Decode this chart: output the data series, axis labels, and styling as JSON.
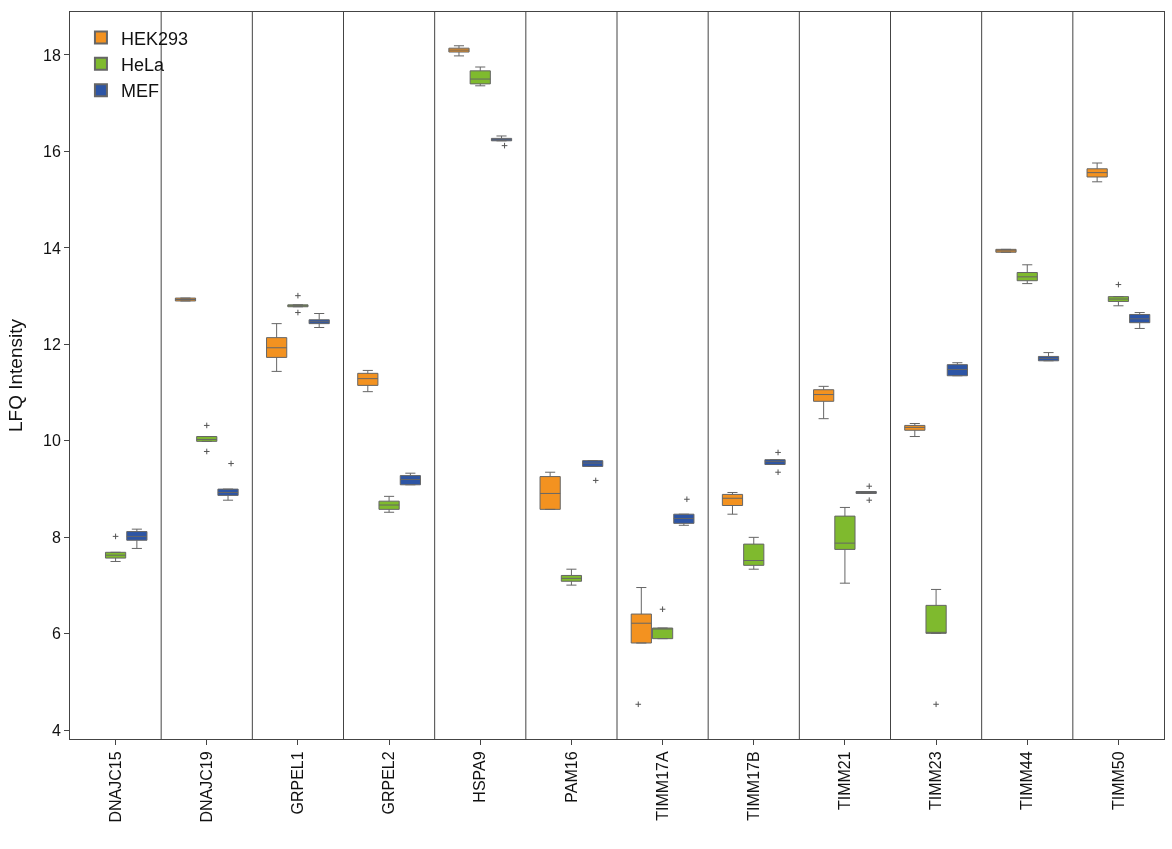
{
  "chart_data": {
    "type": "box",
    "ylabel": "LFQ Intensity",
    "categories": [
      "DNAJC15",
      "DNAJC19",
      "GRPEL1",
      "GRPEL2",
      "HSPA9",
      "PAM16",
      "TIMM17A",
      "TIMM17B",
      "TIMM21",
      "TIMM23",
      "TIMM44",
      "TIMM50"
    ],
    "ylim": [
      3.82,
      18.89
    ],
    "yticks": [
      4,
      6,
      8,
      10,
      12,
      14,
      16,
      18
    ],
    "legend": "top left",
    "series": [
      {
        "name": "HEK293",
        "color": "#f39220",
        "boxes": [
          null,
          {
            "low": 12.9,
            "q1": 12.9,
            "median": 12.93,
            "q3": 12.96,
            "high": 12.96
          },
          {
            "low": 11.44,
            "q1": 11.73,
            "median": 11.93,
            "q3": 12.14,
            "high": 12.43
          },
          {
            "low": 11.02,
            "q1": 11.15,
            "median": 11.29,
            "q3": 11.4,
            "high": 11.46
          },
          {
            "low": 17.98,
            "q1": 18.06,
            "median": 18.1,
            "q3": 18.14,
            "high": 18.19
          },
          {
            "low": 8.58,
            "q1": 8.58,
            "median": 8.91,
            "q3": 9.26,
            "high": 9.35
          },
          {
            "low": 5.81,
            "q1": 5.81,
            "median": 6.22,
            "q3": 6.41,
            "high": 6.96,
            "outliers": [
              4.54
            ]
          },
          {
            "low": 8.48,
            "q1": 8.66,
            "median": 8.81,
            "q3": 8.89,
            "high": 8.93
          },
          {
            "low": 10.46,
            "q1": 10.82,
            "median": 10.96,
            "q3": 11.06,
            "high": 11.13
          },
          {
            "low": 10.09,
            "q1": 10.22,
            "median": 10.28,
            "q3": 10.32,
            "high": 10.36
          },
          {
            "low": 13.91,
            "q1": 13.91,
            "median": 13.94,
            "q3": 13.97,
            "high": 13.97
          },
          {
            "low": 15.37,
            "q1": 15.47,
            "median": 15.56,
            "q3": 15.64,
            "high": 15.76
          }
        ]
      },
      {
        "name": "HeLa",
        "color": "#7fba2e",
        "boxes": [
          {
            "low": 7.5,
            "q1": 7.57,
            "median": 7.63,
            "q3": 7.69,
            "high": 7.69,
            "outliers": [
              8.02
            ]
          },
          {
            "low": 9.99,
            "q1": 9.99,
            "median": 10.03,
            "q3": 10.09,
            "high": 10.09,
            "outliers": [
              10.32,
              9.78
            ]
          },
          {
            "low": 12.78,
            "q1": 12.78,
            "median": 12.8,
            "q3": 12.82,
            "high": 12.82,
            "outliers": [
              13.01,
              12.66
            ]
          },
          {
            "low": 8.52,
            "q1": 8.58,
            "median": 8.67,
            "q3": 8.75,
            "high": 8.85
          },
          {
            "low": 17.36,
            "q1": 17.4,
            "median": 17.5,
            "q3": 17.67,
            "high": 17.75
          },
          {
            "low": 7.01,
            "q1": 7.09,
            "median": 7.15,
            "q3": 7.21,
            "high": 7.34
          },
          {
            "low": 5.9,
            "q1": 5.9,
            "median": 6.1,
            "q3": 6.12,
            "high": 6.12,
            "outliers": [
              6.51
            ]
          },
          {
            "low": 7.34,
            "q1": 7.42,
            "median": 7.52,
            "q3": 7.86,
            "high": 8.0
          },
          {
            "low": 7.05,
            "q1": 7.75,
            "median": 7.88,
            "q3": 8.44,
            "high": 8.62
          },
          {
            "low": 6.01,
            "q1": 6.01,
            "median": 6.01,
            "q3": 6.59,
            "high": 6.92,
            "outliers": [
              4.54
            ]
          },
          {
            "low": 13.26,
            "q1": 13.32,
            "median": 13.4,
            "q3": 13.49,
            "high": 13.65
          },
          {
            "low": 12.8,
            "q1": 12.89,
            "median": 12.94,
            "q3": 12.99,
            "high": 12.99,
            "outliers": [
              13.24
            ]
          }
        ]
      },
      {
        "name": "MEF",
        "color": "#2d55a5",
        "boxes": [
          {
            "low": 7.77,
            "q1": 7.94,
            "median": 8.02,
            "q3": 8.12,
            "high": 8.17
          },
          {
            "low": 8.77,
            "q1": 8.87,
            "median": 8.93,
            "q3": 9.0,
            "high": 9.0,
            "outliers": [
              9.53
            ]
          },
          {
            "low": 12.35,
            "q1": 12.43,
            "median": 12.47,
            "q3": 12.51,
            "high": 12.64
          },
          {
            "low": 9.09,
            "q1": 9.09,
            "median": 9.2,
            "q3": 9.28,
            "high": 9.33
          },
          {
            "low": 16.22,
            "q1": 16.22,
            "median": 16.24,
            "q3": 16.27,
            "high": 16.32,
            "outliers": [
              16.12
            ]
          },
          {
            "low": 9.47,
            "q1": 9.47,
            "median": 9.54,
            "q3": 9.59,
            "high": 9.59,
            "outliers": [
              9.18
            ]
          },
          {
            "low": 8.25,
            "q1": 8.29,
            "median": 8.39,
            "q3": 8.48,
            "high": 8.48,
            "outliers": [
              8.79
            ]
          },
          {
            "low": 9.51,
            "q1": 9.51,
            "median": 9.57,
            "q3": 9.61,
            "high": 9.61,
            "outliers": [
              9.76,
              9.35
            ]
          },
          {
            "low": 8.91,
            "q1": 8.91,
            "median": 8.93,
            "q3": 8.95,
            "high": 8.95,
            "outliers": [
              9.06,
              8.77
            ]
          },
          {
            "low": 11.35,
            "q1": 11.35,
            "median": 11.48,
            "q3": 11.58,
            "high": 11.62
          },
          {
            "low": 11.66,
            "q1": 11.66,
            "median": 11.71,
            "q3": 11.75,
            "high": 11.83
          },
          {
            "low": 12.33,
            "q1": 12.45,
            "median": 12.53,
            "q3": 12.62,
            "high": 12.66
          }
        ]
      }
    ]
  }
}
